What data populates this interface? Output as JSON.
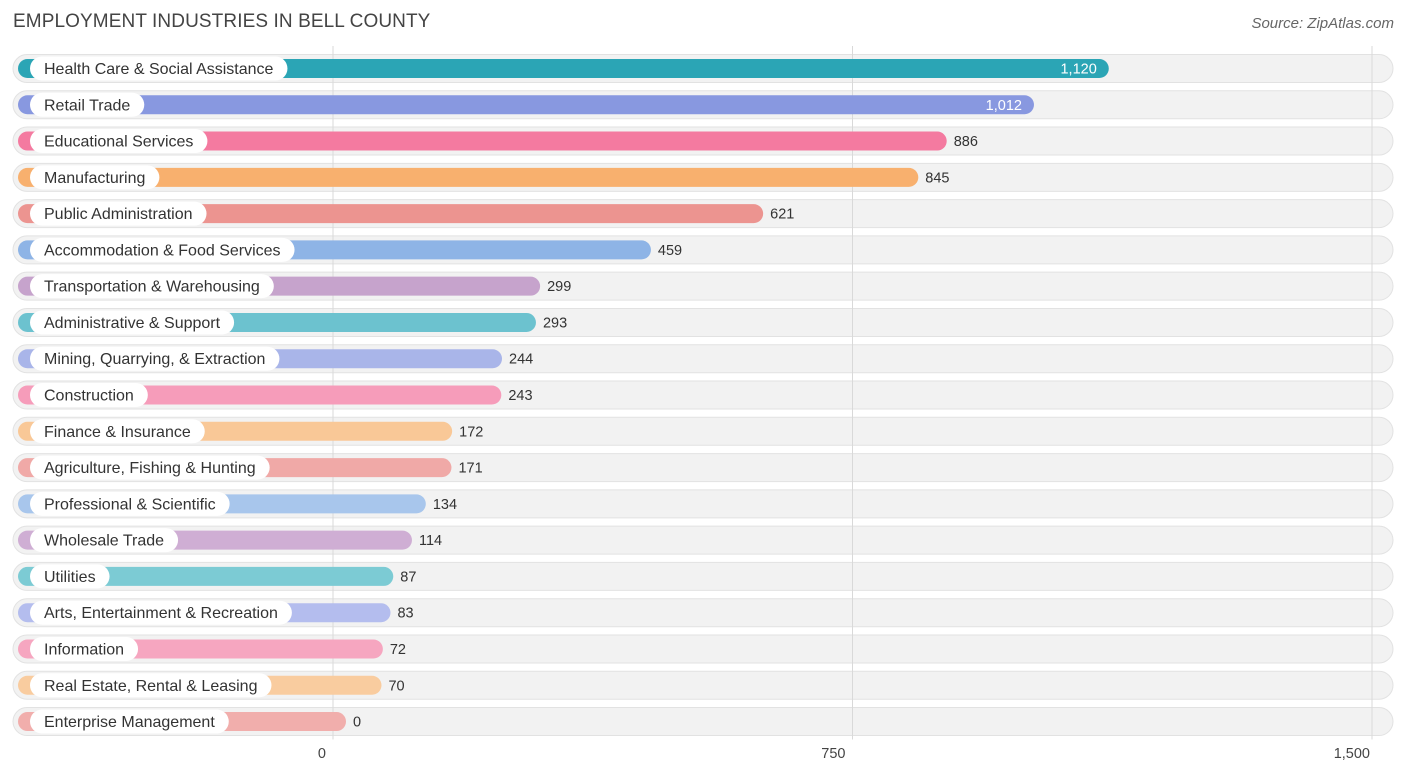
{
  "header": {
    "title": "EMPLOYMENT INDUSTRIES IN BELL COUNTY",
    "source": "Source: ZipAtlas.com"
  },
  "chart_data": {
    "type": "bar",
    "orientation": "horizontal",
    "title": "EMPLOYMENT INDUSTRIES IN BELL COUNTY",
    "xlabel": "",
    "ylabel": "",
    "xlim": [
      0,
      1500
    ],
    "ticks": [
      {
        "value": 0,
        "label": "0"
      },
      {
        "value": 750,
        "label": "750"
      },
      {
        "value": 1500,
        "label": "1,500"
      }
    ],
    "grid": true,
    "legend": "none",
    "bars": [
      {
        "category": "Health Care & Social Assistance",
        "value": 1120,
        "label": "1,120",
        "color": "#2ba5b5"
      },
      {
        "category": "Retail Trade",
        "value": 1012,
        "label": "1,012",
        "color": "#8898e0"
      },
      {
        "category": "Educational Services",
        "value": 886,
        "label": "886",
        "color": "#f47aa0"
      },
      {
        "category": "Manufacturing",
        "value": 845,
        "label": "845",
        "color": "#f8b06e"
      },
      {
        "category": "Public Administration",
        "value": 621,
        "label": "621",
        "color": "#ec9490"
      },
      {
        "category": "Accommodation & Food Services",
        "value": 459,
        "label": "459",
        "color": "#8eb4e6"
      },
      {
        "category": "Transportation & Warehousing",
        "value": 299,
        "label": "299",
        "color": "#c6a3cc"
      },
      {
        "category": "Administrative & Support",
        "value": 293,
        "label": "293",
        "color": "#6cc2cf"
      },
      {
        "category": "Mining, Quarrying, & Extraction",
        "value": 244,
        "label": "244",
        "color": "#a9b5e9"
      },
      {
        "category": "Construction",
        "value": 243,
        "label": "243",
        "color": "#f69cba"
      },
      {
        "category": "Finance & Insurance",
        "value": 172,
        "label": "172",
        "color": "#f9c897"
      },
      {
        "category": "Agriculture, Fishing & Hunting",
        "value": 171,
        "label": "171",
        "color": "#f0a9a7"
      },
      {
        "category": "Professional & Scientific",
        "value": 134,
        "label": "134",
        "color": "#a8c6ec"
      },
      {
        "category": "Wholesale Trade",
        "value": 114,
        "label": "114",
        "color": "#cfaed4"
      },
      {
        "category": "Utilities",
        "value": 87,
        "label": "87",
        "color": "#7ccbd4"
      },
      {
        "category": "Arts, Entertainment & Recreation",
        "value": 83,
        "label": "83",
        "color": "#b4bdee"
      },
      {
        "category": "Information",
        "value": 72,
        "label": "72",
        "color": "#f6a6c0"
      },
      {
        "category": "Real Estate, Rental & Leasing",
        "value": 70,
        "label": "70",
        "color": "#f9cc9f"
      },
      {
        "category": "Enterprise Management",
        "value": 0,
        "label": "0",
        "color": "#f1aeac"
      }
    ]
  }
}
